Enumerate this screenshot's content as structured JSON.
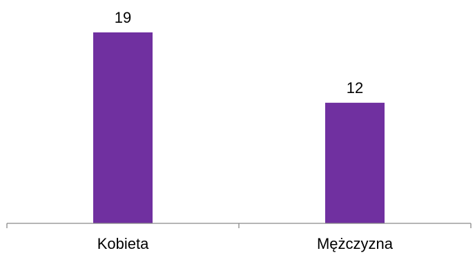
{
  "chart_data": {
    "type": "bar",
    "categories": [
      "Kobieta",
      "Mężczyzna"
    ],
    "values": [
      19,
      12
    ],
    "title": "",
    "xlabel": "",
    "ylabel": "",
    "ylim": [
      0,
      19
    ],
    "grid": false,
    "legend": "none",
    "bar_color": "#7030A0"
  }
}
